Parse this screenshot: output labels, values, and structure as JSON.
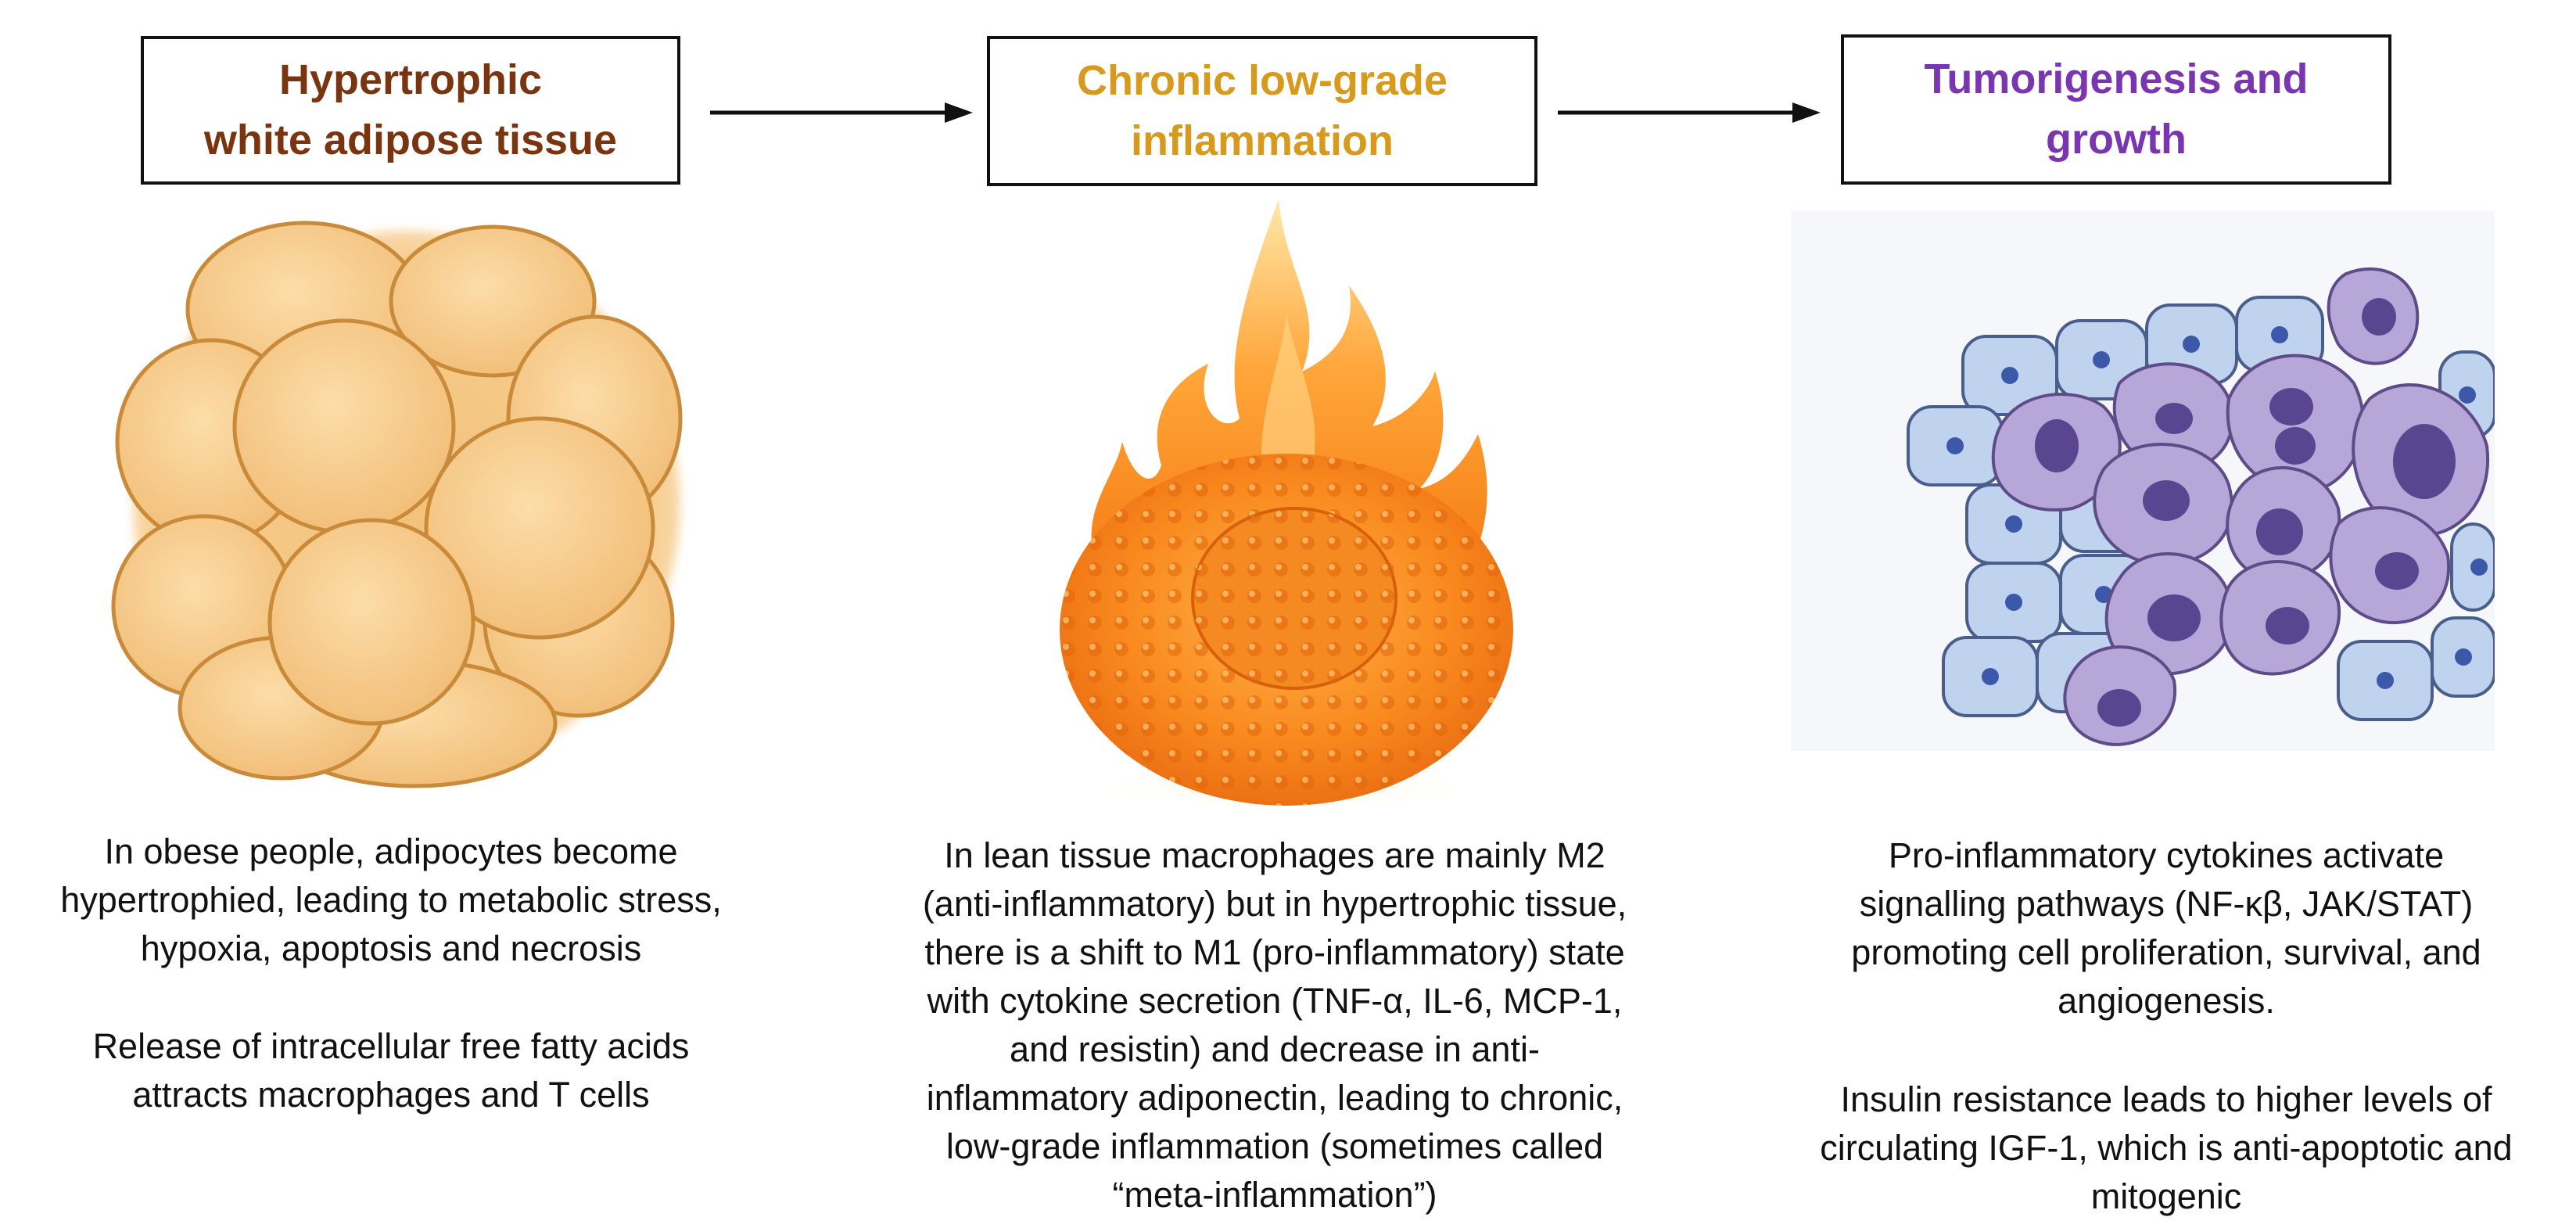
{
  "stages": [
    {
      "title": "Hypertrophic\nwhite adipose tissue",
      "title_color": "#7B3410",
      "illustration": "adipocyte-cluster",
      "paragraphs": [
        "In obese people, adipocytes become\nhypertrophied, leading to metabolic stress,\nhypoxia, apoptosis and necrosis",
        "Release of intracellular free fatty acids\nattracts macrophages and T cells"
      ]
    },
    {
      "title": "Chronic low-grade\ninflammation",
      "title_color": "#D79A1D",
      "illustration": "flaming-cell",
      "paragraphs": [
        "In lean tissue macrophages are mainly M2\n(anti-inflammatory) but in hypertrophic tissue,\nthere is a shift to M1 (pro-inflammatory) state\nwith cytokine secretion (TNF-α, IL-6, MCP-1,\nand resistin) and decrease in anti-\ninflammatory adiponectin, leading to chronic,\nlow-grade inflammation (sometimes called\n“meta-inflammation”)"
      ]
    },
    {
      "title": "Tumorigenesis and\ngrowth",
      "title_color": "#7A35B0",
      "illustration": "tumor-cells",
      "paragraphs": [
        "Pro-inflammatory cytokines activate\nsignalling pathways (NF-κβ, JAK/STAT)\npromoting cell proliferation, survival, and\nangiogenesis.",
        "Insulin resistance leads to higher levels of\ncirculating IGF-1, which is anti-apoptotic and\nmitogenic"
      ]
    }
  ],
  "arrows": [
    "arrow-right-icon",
    "arrow-right-icon"
  ]
}
